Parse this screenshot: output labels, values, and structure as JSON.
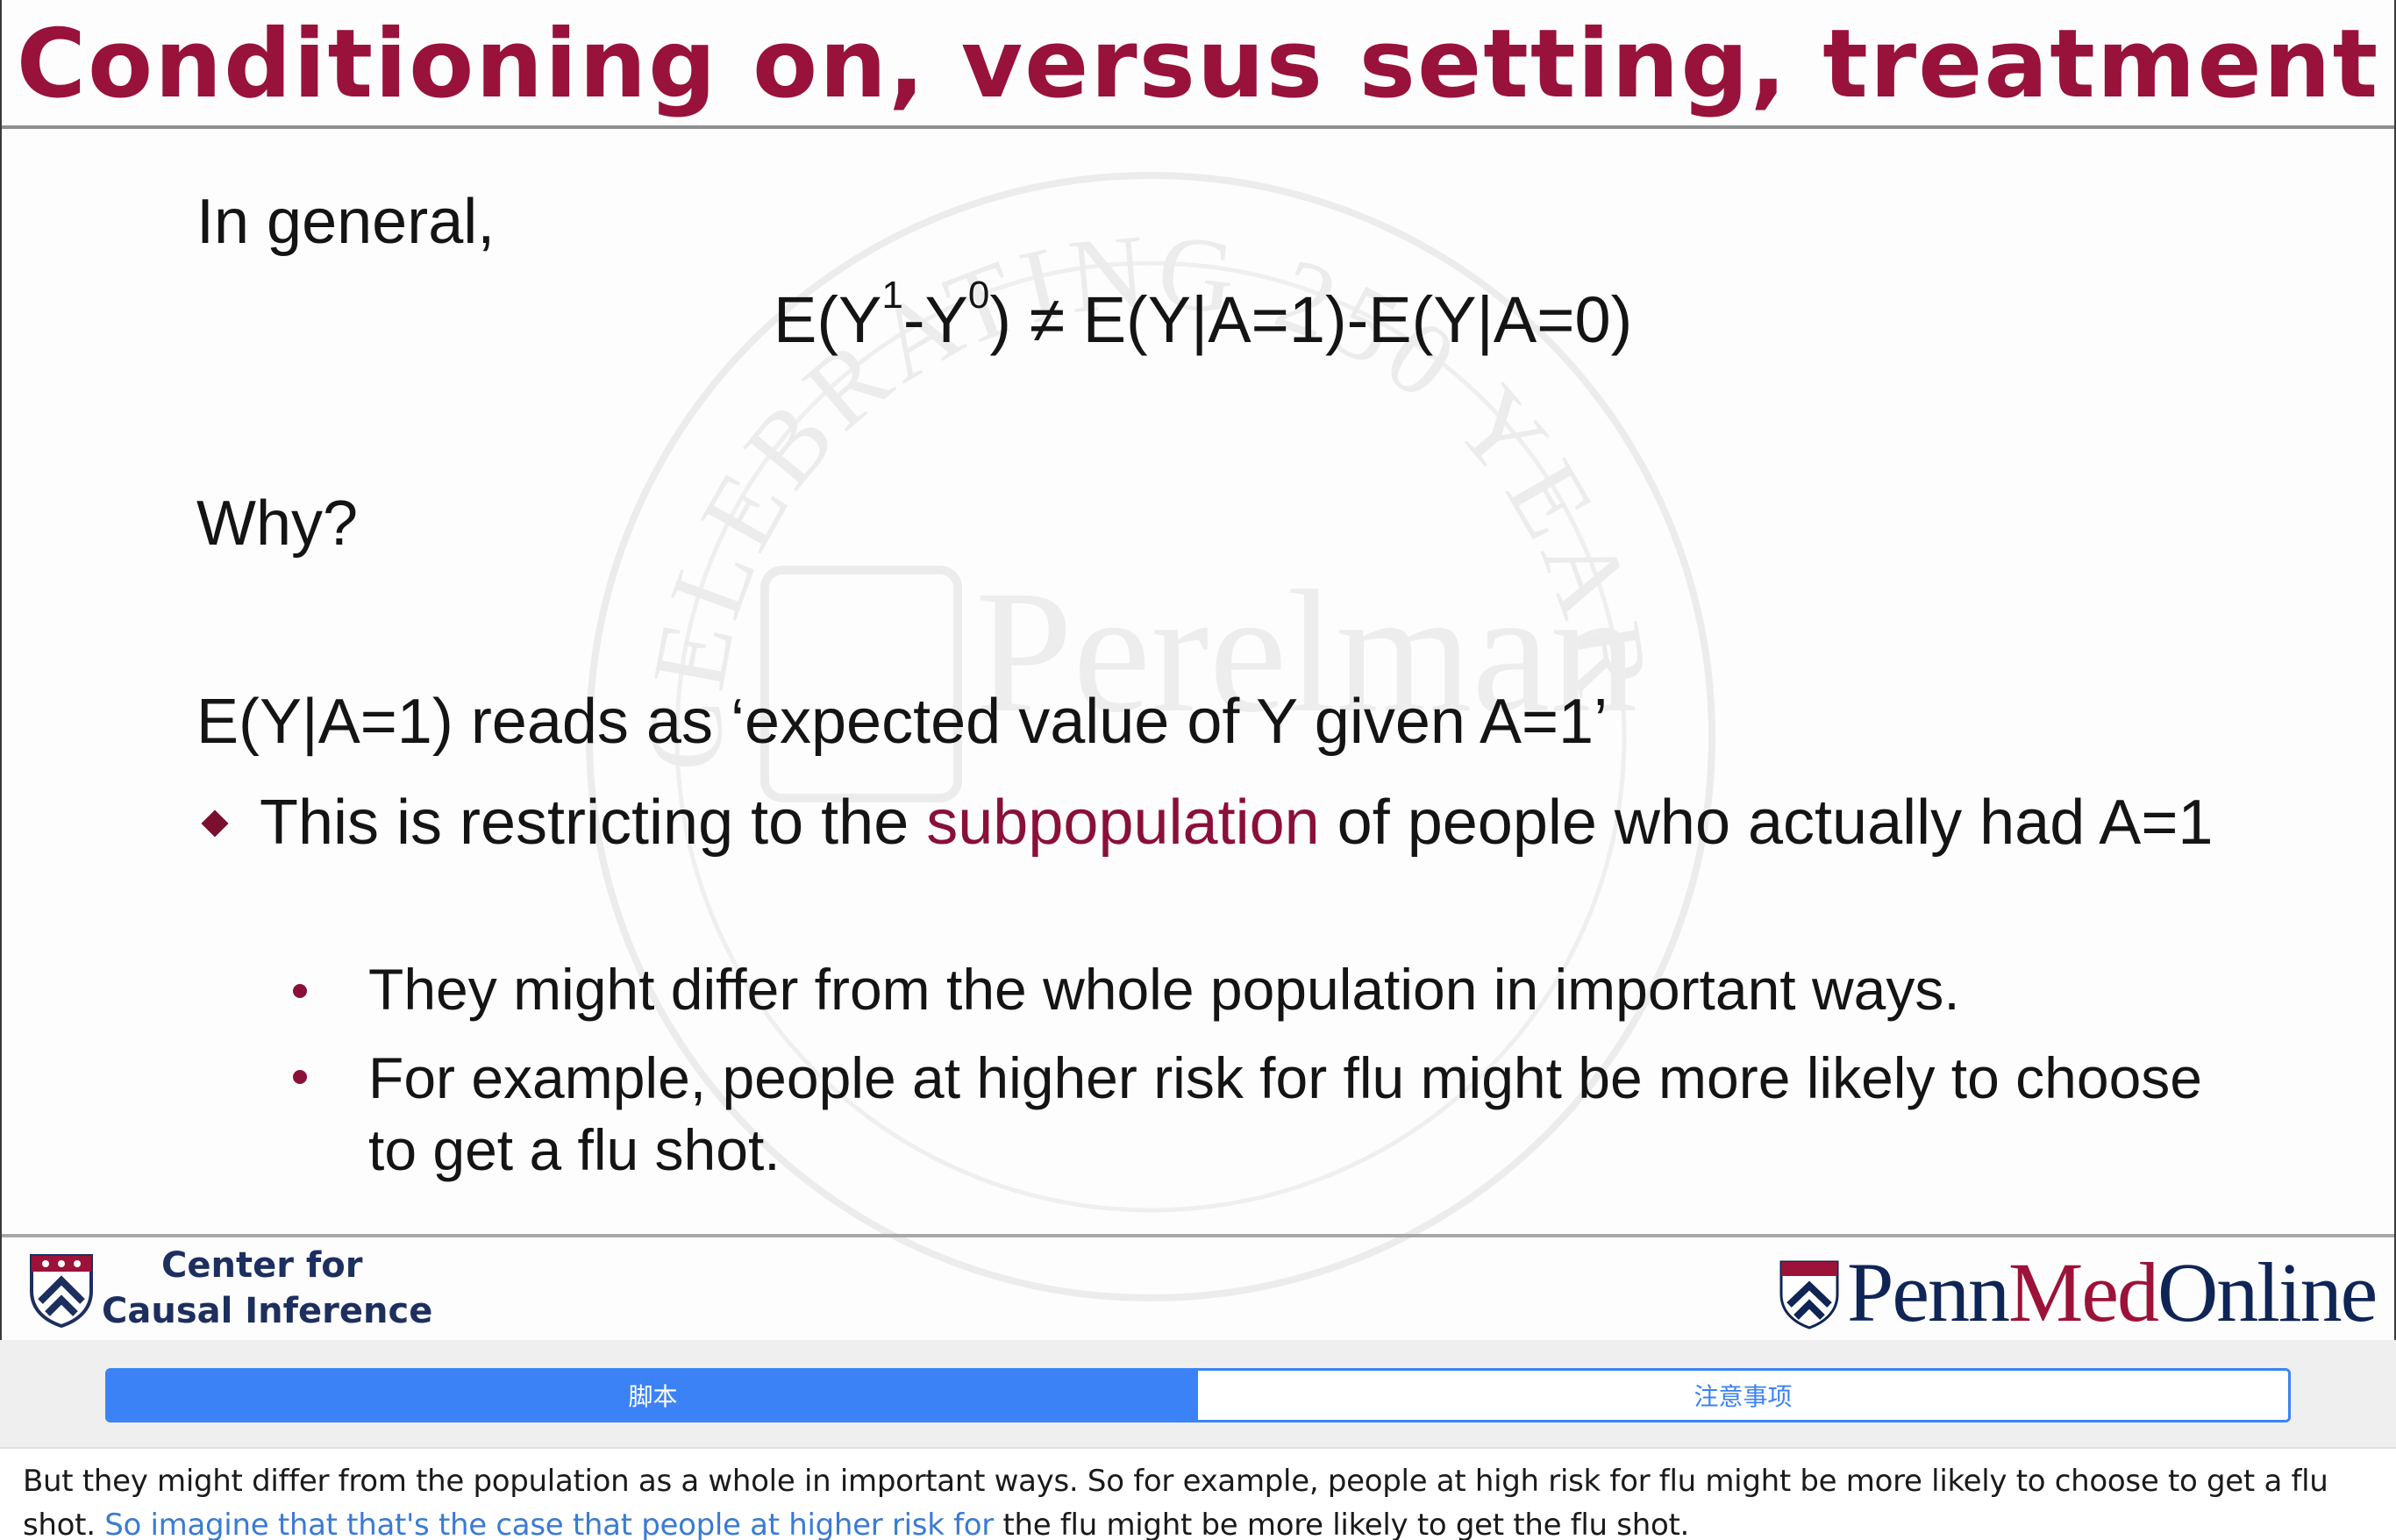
{
  "slide": {
    "title": "Conditioning on, versus setting, treatment",
    "general": "In general,",
    "equation": {
      "left_prefix": "E(Y",
      "sup1": "1",
      "dash": "-Y",
      "sup0": "0",
      "rest": ") ≠ E(Y|A=1)-E(Y|A=0)"
    },
    "why": "Why?",
    "reads_as": "E(Y|A=1) reads as ‘expected value of Y given A=1’",
    "bullet": {
      "before": "This is restricting to the ",
      "highlight": "subpopulation",
      "after": " of people who actually had A=1"
    },
    "sub_bullets": [
      "They might differ from the whole population in important ways.",
      "For example, people at higher risk for flu might be more likely to choose to get a flu shot."
    ],
    "watermark_text": "CELEBRATING 250 YEARS",
    "footer": {
      "cci_line1": "Center for",
      "cci_line2": "Causal Inference",
      "pmo_penn": "Penn",
      "pmo_med": "Med",
      "pmo_online": "Online"
    },
    "colors": {
      "title": "#98123c",
      "highlight": "#8a1038",
      "navy": "#1d2f5e"
    }
  },
  "tabs": {
    "script_label": "脚本",
    "notes_label": "注意事项",
    "active": "script",
    "accent": "#3b82f6"
  },
  "transcript": {
    "before": "But they might differ from the population as a whole in important ways. So for example, people at high risk for flu might be more likely to choose to get a flu shot. ",
    "active": "So imagine that that's the case that people at higher risk for",
    "after": " the flu might be more likely to get the flu shot."
  }
}
